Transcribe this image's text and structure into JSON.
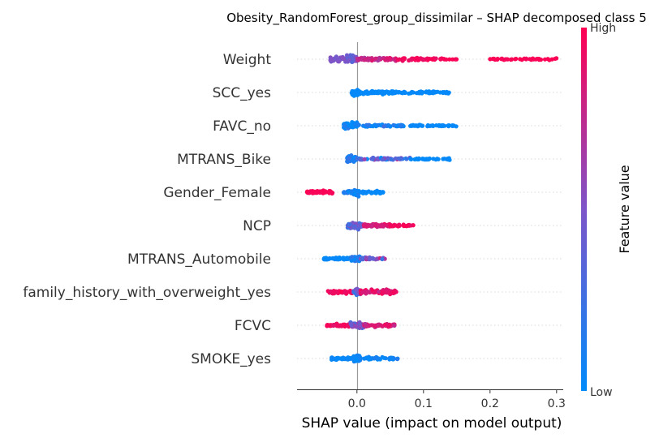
{
  "chart_data": {
    "type": "scatter",
    "title": "Obesity_RandomForest_group_dissimilar – SHAP decomposed class 5",
    "xlabel": "SHAP value (impact on model output)",
    "ylabel": "",
    "xlim": [
      -0.09,
      0.31
    ],
    "xticks": [
      0.0,
      0.1,
      0.2,
      0.3
    ],
    "xtick_labels": [
      "0.0",
      "0.1",
      "0.2",
      "0.3"
    ],
    "grid": "dotted horizontal lines per feature",
    "legend": "colorbar-right",
    "colorbar": {
      "title": "Feature value",
      "high_label": "High",
      "low_label": "Low",
      "low_color": "#008bfb",
      "high_color": "#ff0052"
    },
    "features": [
      {
        "name": "Weight",
        "clusters": [
          {
            "min": -0.04,
            "max": 0.0,
            "n": 70,
            "v": 0.5,
            "vs": 0.08,
            "h": 0.9
          },
          {
            "min": -0.015,
            "max": -0.005,
            "n": 18,
            "v": 0.4,
            "vs": 0.1,
            "h": 1.3
          },
          {
            "min": 0.0,
            "max": 0.06,
            "n": 60,
            "v": 0.8,
            "vs": 0.12,
            "h": 0.55
          },
          {
            "min": 0.06,
            "max": 0.13,
            "n": 50,
            "v": 0.95,
            "vs": 0.05,
            "h": 0.45
          },
          {
            "min": 0.13,
            "max": 0.16,
            "n": 8,
            "v": 0.98,
            "vs": 0.02,
            "h": 0.2
          },
          {
            "min": 0.2,
            "max": 0.3,
            "n": 40,
            "v": 0.98,
            "vs": 0.02,
            "h": 0.35
          }
        ]
      },
      {
        "name": "SCC_yes",
        "clusters": [
          {
            "min": -0.008,
            "max": 0.003,
            "n": 45,
            "v": 0.02,
            "vs": 0.02,
            "h": 1.0
          },
          {
            "min": 0.003,
            "max": 0.06,
            "n": 60,
            "v": 0.02,
            "vs": 0.02,
            "h": 0.5
          },
          {
            "min": 0.06,
            "max": 0.14,
            "n": 55,
            "v": 0.02,
            "vs": 0.02,
            "h": 0.35
          }
        ]
      },
      {
        "name": "FAVC_no",
        "clusters": [
          {
            "min": -0.02,
            "max": 0.0,
            "n": 55,
            "v": 0.05,
            "vs": 0.12,
            "h": 1.0
          },
          {
            "min": 0.0,
            "max": 0.07,
            "n": 50,
            "v": 0.1,
            "vs": 0.2,
            "h": 0.4
          },
          {
            "min": 0.08,
            "max": 0.15,
            "n": 45,
            "v": 0.02,
            "vs": 0.02,
            "h": 0.3
          }
        ]
      },
      {
        "name": "MTRANS_Bike",
        "clusters": [
          {
            "min": -0.015,
            "max": 0.0,
            "n": 50,
            "v": 0.1,
            "vs": 0.15,
            "h": 1.0
          },
          {
            "min": 0.0,
            "max": 0.08,
            "n": 55,
            "v": 0.3,
            "vs": 0.35,
            "h": 0.4
          },
          {
            "min": 0.08,
            "max": 0.14,
            "n": 35,
            "v": 0.02,
            "vs": 0.02,
            "h": 0.3
          }
        ]
      },
      {
        "name": "Gender_Female",
        "clusters": [
          {
            "min": -0.075,
            "max": -0.035,
            "n": 70,
            "v": 0.98,
            "vs": 0.02,
            "h": 0.4
          },
          {
            "min": -0.02,
            "max": -0.005,
            "n": 25,
            "v": 0.1,
            "vs": 0.15,
            "h": 0.5
          },
          {
            "min": -0.005,
            "max": 0.005,
            "n": 40,
            "v": 0.05,
            "vs": 0.08,
            "h": 1.0
          },
          {
            "min": 0.005,
            "max": 0.04,
            "n": 30,
            "v": 0.02,
            "vs": 0.02,
            "h": 0.4
          }
        ]
      },
      {
        "name": "NCP",
        "clusters": [
          {
            "min": -0.015,
            "max": 0.01,
            "n": 60,
            "v": 0.4,
            "vs": 0.3,
            "h": 1.0
          },
          {
            "min": 0.01,
            "max": 0.05,
            "n": 50,
            "v": 0.85,
            "vs": 0.1,
            "h": 0.5
          },
          {
            "min": 0.05,
            "max": 0.085,
            "n": 30,
            "v": 0.95,
            "vs": 0.05,
            "h": 0.4
          }
        ]
      },
      {
        "name": "MTRANS_Automobile",
        "clusters": [
          {
            "min": -0.05,
            "max": -0.01,
            "n": 55,
            "v": 0.02,
            "vs": 0.02,
            "h": 0.4
          },
          {
            "min": -0.01,
            "max": 0.005,
            "n": 60,
            "v": 0.15,
            "vs": 0.2,
            "h": 1.0
          },
          {
            "min": 0.005,
            "max": 0.045,
            "n": 30,
            "v": 0.4,
            "vs": 0.35,
            "h": 0.35
          }
        ]
      },
      {
        "name": "family_history_with_overweight_yes",
        "clusters": [
          {
            "min": -0.045,
            "max": -0.005,
            "n": 50,
            "v": 0.95,
            "vs": 0.05,
            "h": 0.5
          },
          {
            "min": -0.005,
            "max": 0.005,
            "n": 55,
            "v": 0.3,
            "vs": 0.35,
            "h": 1.0
          },
          {
            "min": 0.005,
            "max": 0.06,
            "n": 70,
            "v": 0.9,
            "vs": 0.12,
            "h": 0.75
          }
        ]
      },
      {
        "name": "FCVC",
        "clusters": [
          {
            "min": -0.045,
            "max": -0.01,
            "n": 45,
            "v": 0.95,
            "vs": 0.05,
            "h": 0.45
          },
          {
            "min": -0.01,
            "max": 0.01,
            "n": 65,
            "v": 0.5,
            "vs": 0.3,
            "h": 1.0
          },
          {
            "min": 0.01,
            "max": 0.058,
            "n": 50,
            "v": 0.85,
            "vs": 0.15,
            "h": 0.45
          }
        ]
      },
      {
        "name": "SMOKE_yes",
        "clusters": [
          {
            "min": -0.04,
            "max": -0.005,
            "n": 40,
            "v": 0.05,
            "vs": 0.08,
            "h": 0.4
          },
          {
            "min": -0.005,
            "max": 0.005,
            "n": 60,
            "v": 0.05,
            "vs": 0.08,
            "h": 1.0
          },
          {
            "min": 0.005,
            "max": 0.063,
            "n": 45,
            "v": 0.05,
            "vs": 0.08,
            "h": 0.45
          }
        ]
      }
    ]
  }
}
